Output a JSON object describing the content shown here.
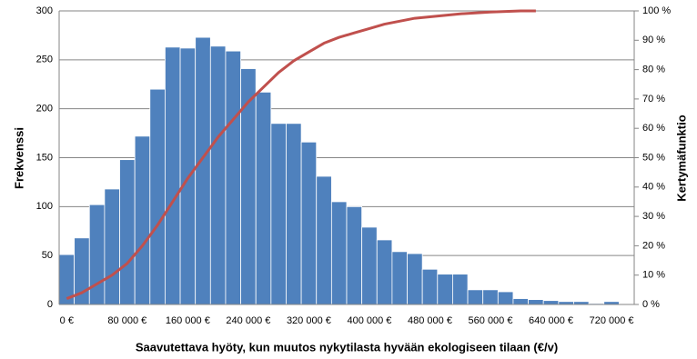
{
  "chart_data": {
    "type": "bar",
    "xlabel": "Saavutettava hyöty, kun muutos nykytilasta hyvään ekologiseen tilaan (€/v)",
    "ylabel": "Frekvenssi",
    "y2label": "Kertymäfunktio",
    "categories": [
      "0 €",
      null,
      null,
      null,
      "80 000 €",
      null,
      null,
      null,
      "160 000 €",
      null,
      null,
      null,
      "240 000 €",
      null,
      null,
      null,
      "320 000 €",
      null,
      null,
      null,
      "400 000 €",
      null,
      null,
      null,
      "480 000 €",
      null,
      null,
      null,
      "560 000 €",
      null,
      null,
      null,
      "640 000 €",
      null,
      null,
      null,
      "720 000 €",
      null
    ],
    "series": [
      {
        "color": "#4f81bd",
        "values": [
          51,
          68,
          102,
          118,
          148,
          172,
          220,
          263,
          262,
          273,
          264,
          259,
          241,
          217,
          185,
          185,
          166,
          131,
          105,
          100,
          79,
          66,
          54,
          52,
          36,
          31,
          31,
          15,
          15,
          13,
          6,
          5,
          4,
          3,
          3,
          1,
          3,
          0
        ]
      },
      {
        "type": "line",
        "axis": "y2",
        "color": "#c0504d",
        "values": [
          2,
          4,
          7,
          10,
          14,
          20,
          27,
          35,
          43,
          50,
          57,
          63,
          69,
          74,
          79,
          83,
          86,
          89,
          91,
          92.5,
          94,
          95.5,
          96.5,
          97.5,
          98,
          98.5,
          99,
          99.3,
          99.6,
          99.8,
          100,
          100,
          null,
          null,
          null,
          null,
          null,
          null
        ]
      }
    ],
    "ylim": [
      0,
      300
    ],
    "yticks": [
      0,
      50,
      100,
      150,
      200,
      250,
      300
    ],
    "y2lim": [
      0,
      100
    ],
    "y2ticks": [
      {
        "value": 0,
        "label": "0 %"
      },
      {
        "value": 10,
        "label": "10 %"
      },
      {
        "value": 20,
        "label": "20 %"
      },
      {
        "value": 30,
        "label": "30 %"
      },
      {
        "value": 40,
        "label": "40 %"
      },
      {
        "value": 50,
        "label": "50 %"
      },
      {
        "value": 60,
        "label": "60 %"
      },
      {
        "value": 70,
        "label": "70 %"
      },
      {
        "value": 80,
        "label": "80 %"
      },
      {
        "value": 90,
        "label": "90 %"
      },
      {
        "value": 100,
        "label": "100 %"
      }
    ],
    "grid": true
  }
}
